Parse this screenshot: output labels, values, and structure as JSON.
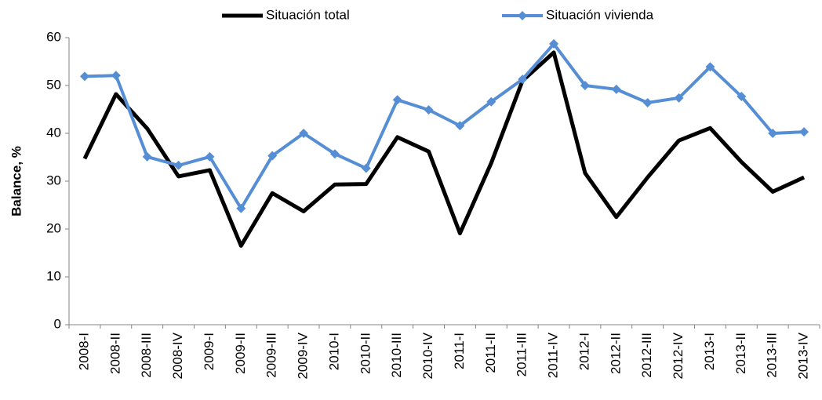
{
  "chart_data": {
    "type": "line",
    "ylabel": "Balance, %",
    "categories": [
      "2008-I",
      "2008-II",
      "2008-III",
      "2008-IV",
      "2009-I",
      "2009-II",
      "2009-III",
      "2009-IV",
      "2010-I",
      "2010-II",
      "2010-III",
      "2010-IV",
      "2011-I",
      "2011-II",
      "2011-III",
      "2011-IV",
      "2012-I",
      "2012-II",
      "2012-III",
      "2012-IV",
      "2013-I",
      "2013-II",
      "2013-III",
      "2013-IV"
    ],
    "series": [
      {
        "name": "Situación total",
        "color": "#000000",
        "marker": "none",
        "values": [
          34.7,
          48.2,
          41,
          31,
          32.3,
          16.5,
          27.5,
          23.7,
          29.3,
          29.4,
          39.2,
          36.2,
          19.1,
          33.8,
          51,
          56.9,
          31.7,
          22.5,
          30.8,
          38.5,
          41.1,
          34,
          27.8,
          30.8
        ]
      },
      {
        "name": "Situación vivienda",
        "color": "#558ed5",
        "marker": "diamond",
        "values": [
          51.9,
          52.1,
          35.1,
          33.3,
          35.1,
          24.3,
          35.3,
          40,
          35.7,
          32.7,
          47,
          44.9,
          41.6,
          46.6,
          51.3,
          58.7,
          50,
          49.2,
          46.4,
          47.4,
          53.9,
          47.7,
          40,
          40.3
        ]
      }
    ],
    "ylim": [
      0,
      60
    ],
    "yticks": [
      0,
      10,
      20,
      30,
      40,
      50,
      60
    ],
    "grid": false,
    "legend": "top"
  }
}
